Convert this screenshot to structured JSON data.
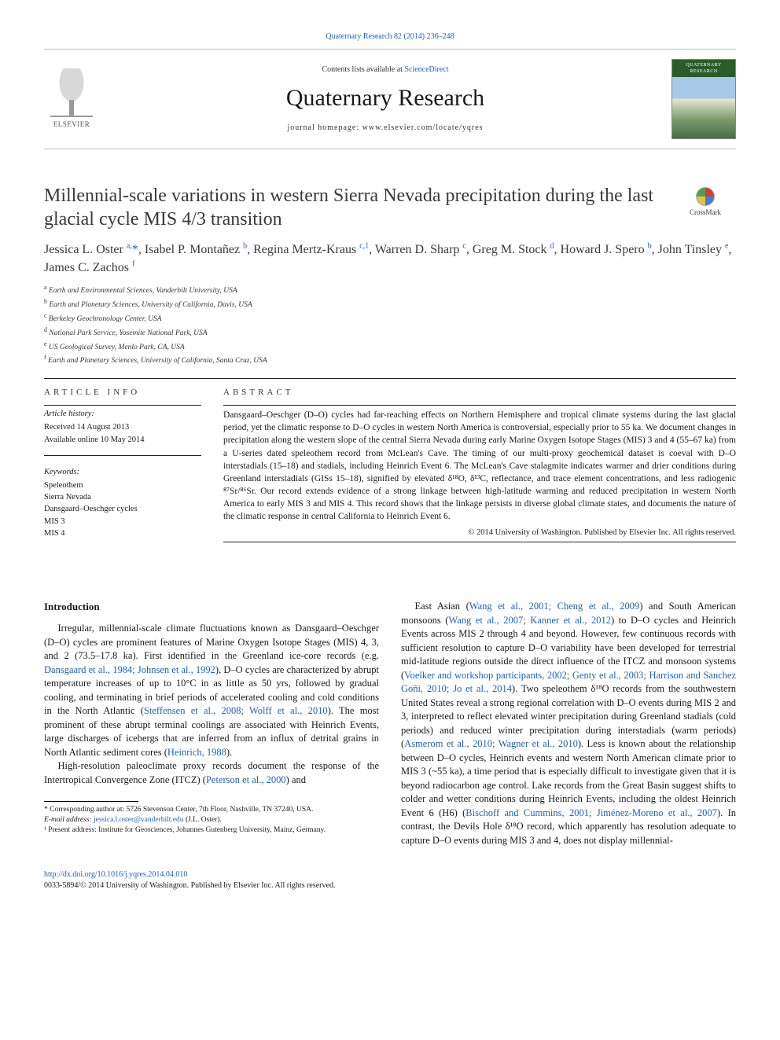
{
  "top_citation": "Quaternary Research 82 (2014) 236–248",
  "masthead": {
    "contents_pre": "Contents lists available at ",
    "contents_link": "ScienceDirect",
    "journal": "Quaternary Research",
    "homepage_pre": "journal homepage: ",
    "homepage_url": "www.elsevier.com/locate/yqres",
    "publisher_word": "ELSEVIER",
    "cover_caption": "QUATERNARY RESEARCH"
  },
  "crossmark_label": "CrossMark",
  "title": "Millennial-scale variations in western Sierra Nevada precipitation during the last glacial cycle MIS 4/3 transition",
  "authors_html": "Jessica L. Oster <sup>a,</sup><a>*</a>, Isabel P. Montañez <sup>b</sup>, Regina Mertz-Kraus <sup>c,1</sup>, Warren D. Sharp <sup>c</sup>, Greg M. Stock <sup>d</sup>, Howard J. Spero <sup>b</sup>, John Tinsley <sup>e</sup>, James C. Zachos <sup>f</sup>",
  "affiliations": [
    "a Earth and Environmental Sciences, Vanderbilt University, USA",
    "b Earth and Planetary Sciences, University of California, Davis, USA",
    "c Berkeley Geochronology Center, USA",
    "d National Park Service, Yosemite National Park, USA",
    "e US Geological Survey, Menlo Park, CA, USA",
    "f Earth and Planetary Sciences, University of California, Santa Cruz, USA"
  ],
  "info": {
    "head": "ARTICLE INFO",
    "history_head": "Article history:",
    "received": "Received 14 August 2013",
    "available": "Available online 10 May 2014",
    "keywords_head": "Keywords:",
    "keywords": [
      "Speleothem",
      "Sierra Nevada",
      "Dansgaard–Oeschger cycles",
      "MIS 3",
      "MIS 4"
    ]
  },
  "abstract": {
    "head": "ABSTRACT",
    "text": "Dansgaard–Oeschger (D–O) cycles had far-reaching effects on Northern Hemisphere and tropical climate systems during the last glacial period, yet the climatic response to D–O cycles in western North America is controversial, especially prior to 55 ka. We document changes in precipitation along the western slope of the central Sierra Nevada during early Marine Oxygen Isotope Stages (MIS) 3 and 4 (55–67 ka) from a U-series dated speleothem record from McLean's Cave. The timing of our multi-proxy geochemical dataset is coeval with D–O interstadials (15–18) and stadials, including Heinrich Event 6. The McLean's Cave stalagmite indicates warmer and drier conditions during Greenland interstadials (GISs 15–18), signified by elevated δ¹⁸O, δ¹³C, reflectance, and trace element concentrations, and less radiogenic ⁸⁷Sr/⁸⁶Sr. Our record extends evidence of a strong linkage between high-latitude warming and reduced precipitation in western North America to early MIS 3 and MIS 4. This record shows that the linkage persists in diverse global climate states, and documents the nature of the climatic response in central California to Heinrich Event 6.",
    "copyright": "© 2014 University of Washington. Published by Elsevier Inc. All rights reserved."
  },
  "intro_head": "Introduction",
  "body": {
    "p1": "Irregular, millennial-scale climate fluctuations known as Dansgaard–Oeschger (D–O) cycles are prominent features of Marine Oxygen Isotope Stages (MIS) 4, 3, and 2 (73.5–17.8 ka). First identified in the Greenland ice-core records (e.g. Dansgaard et al., 1984; Johnsen et al., 1992), D–O cycles are characterized by abrupt temperature increases of up to 10°C in as little as 50 yrs, followed by gradual cooling, and terminating in brief periods of accelerated cooling and cold conditions in the North Atlantic (Steffensen et al., 2008; Wolff et al., 2010). The most prominent of these abrupt terminal coolings are associated with Heinrich Events, large discharges of icebergs that are inferred from an influx of detrital grains in North Atlantic sediment cores (Heinrich, 1988).",
    "p2": "High-resolution paleoclimate proxy records document the response of the Intertropical Convergence Zone (ITCZ) (Peterson et al., 2000) and",
    "p3": "East Asian (Wang et al., 2001; Cheng et al., 2009) and South American monsoons (Wang et al., 2007; Kanner et al., 2012) to D–O cycles and Heinrich Events across MIS 2 through 4 and beyond. However, few continuous records with sufficient resolution to capture D–O variability have been developed for terrestrial mid-latitude regions outside the direct influence of the ITCZ and monsoon systems (Voelker and workshop participants, 2002; Genty et al., 2003; Harrison and Sanchez Goñi, 2010; Jo et al., 2014). Two speleothem δ¹⁸O records from the southwestern United States reveal a strong regional correlation with D–O events during MIS 2 and 3, interpreted to reflect elevated winter precipitation during Greenland stadials (cold periods) and reduced winter precipitation during interstadials (warm periods) (Asmerom et al., 2010; Wagner et al., 2010). Less is known about the relationship between D–O cycles, Heinrich events and western North American climate prior to MIS 3 (~55 ka), a time period that is especially difficult to investigate given that it is beyond radiocarbon age control. Lake records from the Great Basin suggest shifts to colder and wetter conditions during Heinrich Events, including the oldest Heinrich Event 6 (H6) (Bischoff and Cummins, 2001; Jiménez-Moreno et al., 2007). In contrast, the Devils Hole δ¹⁸O record, which apparently has resolution adequate to capture D–O events during MIS 3 and 4, does not display millennial-"
  },
  "footnotes": {
    "corr": "* Corresponding author at: 5726 Stevenson Center, 7th Floor, Nashville, TN 37240, USA.",
    "email_pre": "E-mail address: ",
    "email": "jessica.l.oster@vanderbilt.edu",
    "email_post": " (J.L. Oster).",
    "note1": "¹ Present address: Institute for Geosciences, Johannes Gutenberg University, Mainz, Germany."
  },
  "doi": {
    "url": "http://dx.doi.org/10.1016/j.yqres.2014.04.010",
    "issn_line": "0033-5894/© 2014 University of Washington. Published by Elsevier Inc. All rights reserved."
  },
  "colors": {
    "link": "#2060c0",
    "text": "#1a1a1a",
    "rule": "#222222"
  }
}
